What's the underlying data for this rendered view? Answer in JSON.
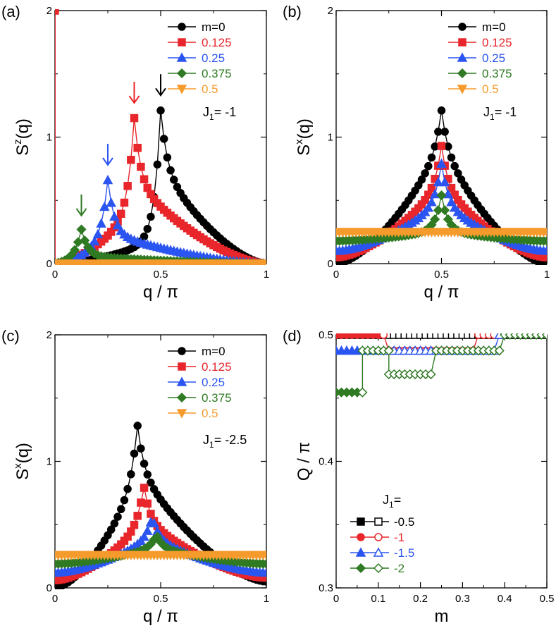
{
  "colors": {
    "m0": "#000000",
    "m0125": "#e8262b",
    "m025": "#2b55f0",
    "m0375": "#2f7a23",
    "m05": "#f59b2c",
    "frame": "#000000"
  },
  "chart_data": [
    {
      "panel": "(a)",
      "type": "line",
      "title": "",
      "xlabel": "q / π",
      "ylabel": "S^z(q)",
      "ylabel_main": "S",
      "ylabel_sup": "z",
      "ylabel_tail": "(q)",
      "xlim": [
        0,
        1
      ],
      "ylim": [
        0,
        2
      ],
      "xticks": [
        "0",
        "0.5",
        "1"
      ],
      "yticks": [
        "0",
        "1",
        "2"
      ],
      "annotation": "J",
      "annotation_sub": "1",
      "annotation_tail": "= -1",
      "legend": [
        "m=0",
        "0.125",
        "0.25",
        "0.375",
        "0.5"
      ],
      "series": [
        {
          "name": "m=0",
          "color": "#000000",
          "marker": "circle",
          "peak_x": 0.5,
          "peak_y": 1.21,
          "left_edge": 0.0,
          "right_edge": 0.0,
          "left_near": 0.15,
          "right_near": 0.62
        },
        {
          "name": "0.125",
          "color": "#e8262b",
          "marker": "square",
          "peak_x": 0.375,
          "peak_y": 1.15,
          "left_edge": 0.0,
          "right_edge": 0.0,
          "left_near": 0.35,
          "right_near": 0.55,
          "spike_x": 0.0,
          "spike_y": 2.0
        },
        {
          "name": "0.25",
          "color": "#2b55f0",
          "marker": "triangle-up",
          "peak_x": 0.25,
          "peak_y": 0.66,
          "left_edge": 0.0,
          "right_edge": 0.0,
          "left_near": 0.28,
          "right_near": 0.36
        },
        {
          "name": "0.375",
          "color": "#2f7a23",
          "marker": "diamond",
          "peak_x": 0.125,
          "peak_y": 0.27,
          "left_edge": 0.0,
          "right_edge": 0.0,
          "left_near": 0.17,
          "right_near": 0.22
        },
        {
          "name": "0.5",
          "color": "#f59b2c",
          "marker": "triangle-down",
          "flat": 0.0
        }
      ],
      "arrows": [
        {
          "x": 0.5,
          "tip_y": 1.33,
          "color": "#000000"
        },
        {
          "x": 0.375,
          "tip_y": 1.27,
          "color": "#e8262b"
        },
        {
          "x": 0.25,
          "tip_y": 0.78,
          "color": "#2b55f0"
        },
        {
          "x": 0.125,
          "tip_y": 0.38,
          "color": "#2f7a23"
        }
      ]
    },
    {
      "panel": "(b)",
      "type": "line",
      "xlabel": "q / π",
      "ylabel": "S^x(q)",
      "ylabel_main": "S",
      "ylabel_sup": "x",
      "ylabel_tail": "(q)",
      "xlim": [
        0,
        1
      ],
      "ylim": [
        0,
        2
      ],
      "xticks": [
        "0",
        "0.5",
        "1"
      ],
      "yticks": [
        "0",
        "1",
        "2"
      ],
      "annotation": "J",
      "annotation_sub": "1",
      "annotation_tail": "= -1",
      "legend": [
        "m=0",
        "0.125",
        "0.25",
        "0.375",
        "0.5"
      ],
      "series": [
        {
          "name": "m=0",
          "color": "#000000",
          "marker": "circle",
          "peak_x": 0.5,
          "peak_y": 1.21,
          "left_edge": 0.0,
          "right_edge": 0.0,
          "left_near": 0.75,
          "right_near": 0.75
        },
        {
          "name": "0.125",
          "color": "#e8262b",
          "marker": "square",
          "peak_x": 0.5,
          "peak_y": 0.93,
          "left_edge": 0.05,
          "right_edge": 0.05,
          "left_near": 0.66,
          "right_near": 0.66
        },
        {
          "name": "0.25",
          "color": "#2b55f0",
          "marker": "triangle-up",
          "peak_x": 0.5,
          "peak_y": 0.79,
          "left_edge": 0.1,
          "right_edge": 0.1,
          "left_near": 0.6,
          "right_near": 0.6
        },
        {
          "name": "0.375",
          "color": "#2f7a23",
          "marker": "diamond",
          "peak_x": 0.5,
          "peak_y": 0.54,
          "left_edge": 0.18,
          "right_edge": 0.18,
          "left_near": 0.48,
          "right_near": 0.48
        },
        {
          "name": "0.5",
          "color": "#f59b2c",
          "marker": "triangle-down",
          "flat": 0.25
        }
      ]
    },
    {
      "panel": "(c)",
      "type": "line",
      "xlabel": "q / π",
      "ylabel": "S^x(q)",
      "ylabel_main": "S",
      "ylabel_sup": "x",
      "ylabel_tail": "(q)",
      "xlim": [
        0,
        1
      ],
      "ylim": [
        0,
        2
      ],
      "xticks": [
        "0",
        "0.5",
        "1"
      ],
      "yticks": [
        "0",
        "1",
        "2"
      ],
      "annotation": "J",
      "annotation_sub": "1",
      "annotation_tail": "= -2.5",
      "legend": [
        "m=0",
        "0.125",
        "0.25",
        "0.375",
        "0.5"
      ],
      "series": [
        {
          "name": "m=0",
          "color": "#000000",
          "marker": "circle",
          "peak_x": 0.39,
          "peak_y": 1.29,
          "left_edge": 0.0,
          "right_edge": 0.05,
          "left_near": 0.65,
          "right_near": 0.72
        },
        {
          "name": "0.125",
          "color": "#e8262b",
          "marker": "square",
          "peak_x": 0.42,
          "peak_y": 0.81,
          "left_edge": 0.06,
          "right_edge": 0.08,
          "left_near": 0.62,
          "right_near": 0.66
        },
        {
          "name": "0.25",
          "color": "#2b55f0",
          "marker": "triangle-up",
          "peak_x": 0.46,
          "peak_y": 0.56,
          "left_edge": 0.12,
          "right_edge": 0.12,
          "left_near": 0.7,
          "right_near": 0.7
        },
        {
          "name": "0.375",
          "color": "#2f7a23",
          "marker": "diamond",
          "peak_x": 0.48,
          "peak_y": 0.42,
          "left_edge": 0.19,
          "right_edge": 0.19,
          "left_near": 0.75,
          "right_near": 0.75
        },
        {
          "name": "0.5",
          "color": "#f59b2c",
          "marker": "triangle-down",
          "flat": 0.26
        }
      ]
    },
    {
      "panel": "(d)",
      "type": "step",
      "xlabel": "m",
      "ylabel": "Q / π",
      "xlim": [
        0,
        0.5
      ],
      "ylim": [
        0.3,
        0.5
      ],
      "xticks": [
        "0",
        "0.1",
        "0.2",
        "0.3",
        "0.4",
        "0.5"
      ],
      "yticks": [
        "0.3",
        "0.4",
        "0.5"
      ],
      "legend_title": "J",
      "legend_title_sub": "1",
      "legend_title_tail": "=",
      "legend": [
        "-0.5",
        "-1",
        "-1.5",
        "-2"
      ],
      "series": [
        {
          "name": "-0.5",
          "color": "#000000",
          "marker": "square",
          "points": [
            [
              0.0,
              0.5
            ],
            [
              0.0125,
              0.5
            ],
            [
              0.025,
              0.5
            ],
            [
              0.0375,
              0.5
            ],
            [
              0.05,
              0.5
            ],
            [
              0.0625,
              0.5
            ],
            [
              0.075,
              0.5
            ],
            [
              0.0875,
              0.5
            ],
            [
              0.1,
              0.5
            ],
            [
              0.1125,
              0.5
            ],
            [
              0.125,
              0.5
            ],
            [
              0.1375,
              0.5
            ],
            [
              0.15,
              0.5
            ],
            [
              0.1625,
              0.5
            ],
            [
              0.175,
              0.5
            ],
            [
              0.1875,
              0.5
            ],
            [
              0.2,
              0.5
            ],
            [
              0.2125,
              0.5
            ],
            [
              0.225,
              0.5
            ],
            [
              0.2375,
              0.5
            ],
            [
              0.25,
              0.5
            ],
            [
              0.2625,
              0.5
            ],
            [
              0.275,
              0.5
            ],
            [
              0.2875,
              0.5
            ],
            [
              0.3,
              0.5
            ],
            [
              0.3125,
              0.5
            ],
            [
              0.325,
              0.5
            ],
            [
              0.3375,
              0.5
            ],
            [
              0.35,
              0.5
            ],
            [
              0.3625,
              0.5
            ],
            [
              0.375,
              0.5
            ],
            [
              0.3875,
              0.5
            ],
            [
              0.4,
              0.5
            ],
            [
              0.4125,
              0.5
            ],
            [
              0.425,
              0.5
            ],
            [
              0.4375,
              0.5
            ],
            [
              0.45,
              0.5
            ],
            [
              0.4625,
              0.5
            ],
            [
              0.475,
              0.5
            ],
            [
              0.4875,
              0.5
            ],
            [
              0.5,
              0.5
            ]
          ]
        },
        {
          "name": "-1",
          "color": "#e8262b",
          "marker": "circle",
          "points": [
            [
              0.0,
              0.5
            ],
            [
              0.0125,
              0.5
            ],
            [
              0.025,
              0.5
            ],
            [
              0.0375,
              0.5
            ],
            [
              0.05,
              0.5
            ],
            [
              0.0625,
              0.5
            ],
            [
              0.075,
              0.5
            ],
            [
              0.0875,
              0.5
            ],
            [
              0.1,
              0.5
            ],
            [
              0.1125,
              0.5
            ],
            [
              0.125,
              0.4875
            ],
            [
              0.1375,
              0.4875
            ],
            [
              0.15,
              0.4875
            ],
            [
              0.1625,
              0.4875
            ],
            [
              0.175,
              0.4875
            ],
            [
              0.1875,
              0.4875
            ],
            [
              0.2,
              0.4875
            ],
            [
              0.2125,
              0.4875
            ],
            [
              0.225,
              0.4875
            ],
            [
              0.2375,
              0.4875
            ],
            [
              0.25,
              0.4875
            ],
            [
              0.2625,
              0.4875
            ],
            [
              0.275,
              0.4875
            ],
            [
              0.2875,
              0.4875
            ],
            [
              0.3,
              0.4875
            ],
            [
              0.3125,
              0.4875
            ],
            [
              0.325,
              0.4875
            ],
            [
              0.3375,
              0.5
            ],
            [
              0.35,
              0.5
            ],
            [
              0.3625,
              0.5
            ],
            [
              0.375,
              0.5
            ]
          ]
        },
        {
          "name": "-1.5",
          "color": "#2b55f0",
          "marker": "triangle-up",
          "points": [
            [
              0.0,
              0.4875
            ],
            [
              0.0125,
              0.4875
            ],
            [
              0.025,
              0.4875
            ],
            [
              0.0375,
              0.4875
            ],
            [
              0.05,
              0.4875
            ],
            [
              0.0625,
              0.4875
            ],
            [
              0.075,
              0.4875
            ],
            [
              0.0875,
              0.4875
            ],
            [
              0.1,
              0.4875
            ],
            [
              0.1125,
              0.4875
            ],
            [
              0.125,
              0.4875
            ],
            [
              0.1375,
              0.4875
            ],
            [
              0.15,
              0.4875
            ],
            [
              0.1625,
              0.4875
            ],
            [
              0.175,
              0.4875
            ],
            [
              0.1875,
              0.4875
            ],
            [
              0.2,
              0.4875
            ],
            [
              0.2125,
              0.4875
            ],
            [
              0.225,
              0.4875
            ],
            [
              0.2375,
              0.4875
            ],
            [
              0.25,
              0.4875
            ],
            [
              0.2625,
              0.4875
            ],
            [
              0.275,
              0.4875
            ],
            [
              0.2875,
              0.4875
            ],
            [
              0.3,
              0.4875
            ],
            [
              0.3125,
              0.4875
            ],
            [
              0.325,
              0.4875
            ],
            [
              0.3375,
              0.4875
            ],
            [
              0.35,
              0.4875
            ],
            [
              0.3625,
              0.4875
            ],
            [
              0.375,
              0.4875
            ],
            [
              0.3875,
              0.5
            ]
          ]
        },
        {
          "name": "-2",
          "color": "#2f7a23",
          "marker": "diamond",
          "points": [
            [
              0.0,
              0.4545
            ],
            [
              0.0125,
              0.4545
            ],
            [
              0.025,
              0.4545
            ],
            [
              0.0375,
              0.4545
            ],
            [
              0.05,
              0.4545
            ],
            [
              0.0625,
              0.4545
            ],
            [
              0.0625,
              0.4875
            ],
            [
              0.075,
              0.4875
            ],
            [
              0.0875,
              0.4875
            ],
            [
              0.1,
              0.4875
            ],
            [
              0.1125,
              0.4875
            ],
            [
              0.125,
              0.4875
            ],
            [
              0.125,
              0.4688
            ],
            [
              0.1375,
              0.4688
            ],
            [
              0.15,
              0.4688
            ],
            [
              0.1625,
              0.4688
            ],
            [
              0.175,
              0.4688
            ],
            [
              0.1875,
              0.4688
            ],
            [
              0.2,
              0.4688
            ],
            [
              0.2125,
              0.4688
            ],
            [
              0.225,
              0.4688
            ],
            [
              0.2375,
              0.4875
            ],
            [
              0.25,
              0.4875
            ],
            [
              0.2625,
              0.4875
            ],
            [
              0.275,
              0.4875
            ],
            [
              0.2875,
              0.4875
            ],
            [
              0.3,
              0.4875
            ],
            [
              0.3125,
              0.4875
            ],
            [
              0.325,
              0.4875
            ],
            [
              0.3375,
              0.4875
            ],
            [
              0.35,
              0.4875
            ],
            [
              0.3625,
              0.4875
            ],
            [
              0.375,
              0.4875
            ],
            [
              0.3875,
              0.4875
            ],
            [
              0.4,
              0.5
            ],
            [
              0.4125,
              0.5
            ],
            [
              0.425,
              0.5
            ],
            [
              0.4375,
              0.5
            ],
            [
              0.45,
              0.5
            ],
            [
              0.4625,
              0.5
            ],
            [
              0.475,
              0.5
            ],
            [
              0.4875,
              0.5
            ],
            [
              0.5,
              0.5
            ]
          ]
        }
      ]
    }
  ]
}
